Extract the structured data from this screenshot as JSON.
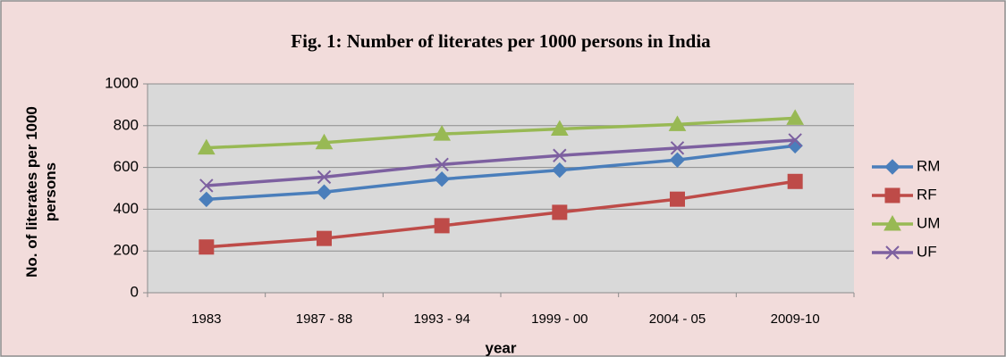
{
  "chart_data": {
    "type": "line",
    "title": "Fig. 1: Number of literates per 1000 persons in India",
    "x_label": "year",
    "y_label": "No. of literates per 1000 persons",
    "categories": [
      "1983",
      "1987 - 88",
      "1993 - 94",
      "1999 - 00",
      "2004 - 05",
      "2009-10"
    ],
    "series": [
      {
        "name": "RM",
        "color": "#4a7ebb",
        "marker": "diamond",
        "values": [
          447,
          482,
          544,
          587,
          636,
          704
        ]
      },
      {
        "name": "RF",
        "color": "#be4b48",
        "marker": "square",
        "values": [
          219,
          260,
          321,
          385,
          448,
          533
        ]
      },
      {
        "name": "UM",
        "color": "#98b954",
        "marker": "triangle",
        "values": [
          694,
          719,
          760,
          784,
          806,
          836
        ]
      },
      {
        "name": "UF",
        "color": "#7d60a0",
        "marker": "x",
        "values": [
          513,
          554,
          614,
          657,
          693,
          731
        ]
      }
    ],
    "ylim": [
      0,
      1000
    ],
    "yticks": [
      0,
      200,
      400,
      600,
      800,
      1000
    ],
    "grid": true,
    "legend": "right"
  }
}
